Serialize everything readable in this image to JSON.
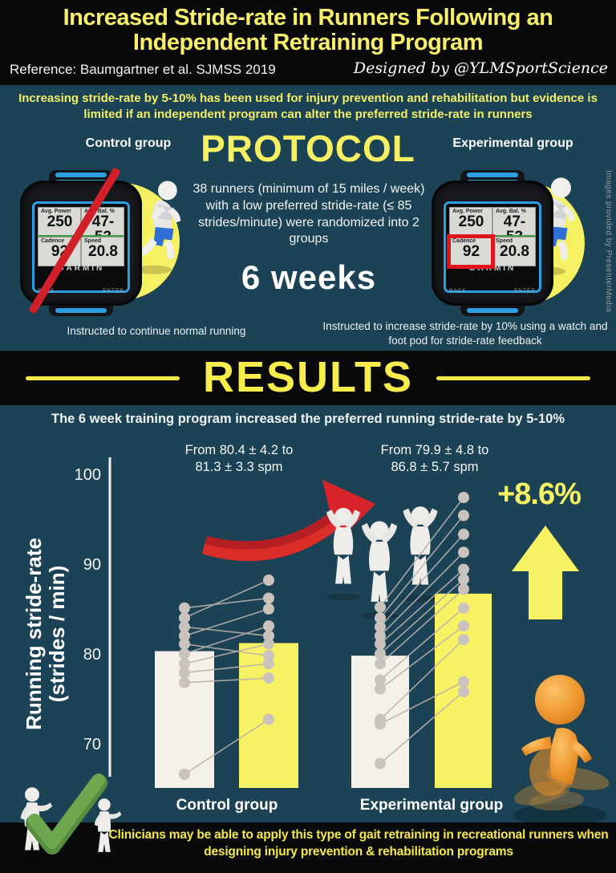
{
  "colors": {
    "background": "#1c4355",
    "band_black": "#0a0a0c",
    "accent_yellow": "#f7f063",
    "bar_pre": "#f4f1ea",
    "bar_post": "#f7f263",
    "dot_gray": "#cac2bd",
    "line_gray": "#b9b1ad",
    "red": "#d2202a",
    "check_green": "#6da84f",
    "figure_orange": "#f09a33"
  },
  "header": {
    "title_line1": "Increased Stride-rate in Runners Following an",
    "title_line2": "Independent Retraining Program",
    "reference": "Reference: Baumgartner et al. SJMSS 2019",
    "designed_by": "Designed by @YLMSportScience"
  },
  "intro": {
    "text": "Increasing stride-rate by 5-10% has been used for injury prevention and rehabilitation but evidence is limited if an independent program can alter the preferred stride-rate in runners"
  },
  "protocol": {
    "heading": "PROTOCOL",
    "control_group_label": "Control group",
    "experimental_group_label": "Experimental group",
    "description": "38 runners (minimum of 15 miles / week) with a low preferred stride-rate (≤ 85 strides/minute) were randomized into 2 groups",
    "duration": "6 weeks",
    "control_caption": "Instructed to continue normal running",
    "experimental_caption": "Instructed to increase stride-rate by 10% using a watch and foot pod for stride-rate feedback",
    "image_credit": "Images provided by PresenterMedia"
  },
  "watch": {
    "brand": "GARMIN",
    "fields": [
      {
        "label": "Avg. Power",
        "value": "250"
      },
      {
        "label": "Avg. Bal. %",
        "value": "47-53"
      },
      {
        "label": "Cadence",
        "value": "92"
      },
      {
        "label": "Speed",
        "value": "20.8"
      }
    ],
    "buttons": {
      "left": "BACK",
      "right": "ENTER"
    }
  },
  "results": {
    "heading": "RESULTS",
    "subtitle": "The 6 week training program increased the preferred running stride-rate by 5-10%",
    "percent_change": "+8.6%"
  },
  "chart_data": {
    "type": "paired-dot-bar",
    "ylabel": "Running stride-rate (strides / min)",
    "ylabel_lines": [
      "Running stride-rate",
      "(strides / min)"
    ],
    "yticks": [
      70,
      80,
      90,
      100
    ],
    "ylim": [
      65,
      102
    ],
    "categories": [
      "Control group",
      "Experimental group"
    ],
    "bar_series": [
      {
        "name": "Preferred stride-rate before (white bar)",
        "values": [
          80.4,
          79.9
        ]
      },
      {
        "name": "Preferred stride-rate after (yellow bar)",
        "values": [
          81.3,
          86.8
        ]
      }
    ],
    "group_stats": [
      {
        "group": "Control group",
        "pre_mean": 80.4,
        "pre_sd": 4.2,
        "post_mean": 81.3,
        "post_sd": 3.3
      },
      {
        "group": "Experimental group",
        "pre_mean": 79.9,
        "pre_sd": 4.8,
        "post_mean": 86.8,
        "post_sd": 5.7
      }
    ],
    "annotations": [
      {
        "group": "Control group",
        "line1": "From 80.4 ± 4.2 to",
        "line2": "81.3 ± 3.3 spm"
      },
      {
        "group": "Experimental group",
        "line1": "From 79.9 ± 4.8 to",
        "line2": "86.8 ± 5.7 spm"
      }
    ],
    "percent_change_label": "+8.6%",
    "individual_pairs": {
      "control": [
        [
          84.1,
          88.3
        ],
        [
          85.2,
          86.3
        ],
        [
          82.1,
          85.1
        ],
        [
          83.1,
          82.1
        ],
        [
          80.1,
          83.2
        ],
        [
          81.2,
          79.9
        ],
        [
          79.0,
          81.2
        ],
        [
          78.0,
          79.0
        ],
        [
          76.9,
          77.4
        ],
        [
          66.7,
          72.8
        ]
      ],
      "experimental": [
        [
          85.3,
          97.5
        ],
        [
          84.1,
          95.5
        ],
        [
          83.1,
          93.4
        ],
        [
          82.1,
          91.4
        ],
        [
          81.2,
          89.5
        ],
        [
          80.1,
          88.4
        ],
        [
          79.0,
          87.3
        ],
        [
          77.2,
          85.2
        ],
        [
          76.2,
          83.2
        ],
        [
          72.8,
          81.7
        ],
        [
          72.3,
          77.0
        ],
        [
          67.9,
          75.9
        ]
      ]
    },
    "legend_position": "none",
    "grid": false
  },
  "footer": {
    "conclusion": "Clinicians may be able to apply this type of gait retraining in recreational runners when designing injury prevention & rehabilitation programs"
  }
}
